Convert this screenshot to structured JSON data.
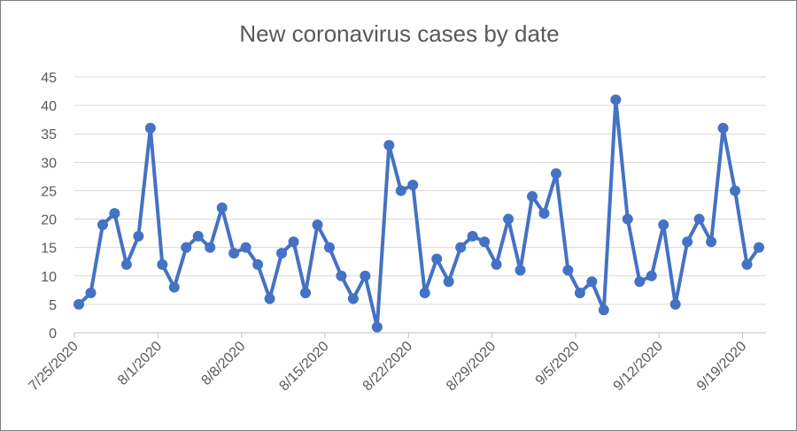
{
  "chart_data": {
    "type": "line",
    "title": "New coronavirus cases by date",
    "xlabel": "",
    "ylabel": "",
    "ylim": [
      0,
      45
    ],
    "yticks": [
      "0",
      "5",
      "10",
      "15",
      "20",
      "25",
      "30",
      "35",
      "40",
      "45"
    ],
    "xticks": [
      {
        "label": "7/25/2020",
        "index": 0
      },
      {
        "label": "8/1/2020",
        "index": 7
      },
      {
        "label": "8/8/2020",
        "index": 14
      },
      {
        "label": "8/15/2020",
        "index": 21
      },
      {
        "label": "8/22/2020",
        "index": 28
      },
      {
        "label": "8/29/2020",
        "index": 35
      },
      {
        "label": "9/5/2020",
        "index": 42
      },
      {
        "label": "9/12/2020",
        "index": 49
      },
      {
        "label": "9/19/2020",
        "index": 56
      }
    ],
    "grid": true,
    "legend": "none",
    "color": "#4472C4",
    "series": [
      {
        "values": [
          5,
          7,
          19,
          21,
          12,
          17,
          36,
          12,
          8,
          15,
          17,
          15,
          22,
          14,
          15,
          12,
          6,
          14,
          16,
          7,
          19,
          15,
          10,
          6,
          10,
          1,
          33,
          25,
          26,
          7,
          13,
          9,
          15,
          17,
          16,
          12,
          20,
          11,
          24,
          21,
          28,
          11,
          7,
          9,
          4,
          41,
          20,
          9,
          10,
          19,
          5,
          16,
          20,
          16,
          36,
          25,
          12,
          15
        ]
      }
    ]
  }
}
